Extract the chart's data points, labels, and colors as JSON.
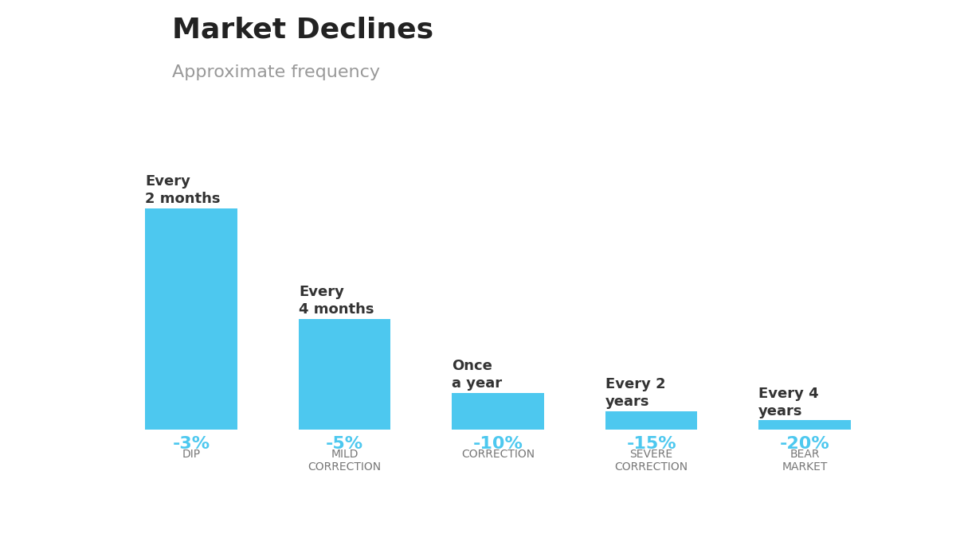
{
  "title": "Market Declines",
  "subtitle": "Approximate frequency",
  "bar_color": "#4DC8EF",
  "background_color": "#FFFFFF",
  "categories": [
    "-3%",
    "-5%",
    "-10%",
    "-15%",
    "-20%"
  ],
  "sublabels": [
    "DIP",
    "MILD\nCORRECTION",
    "CORRECTION",
    "SEVERE\nCORRECTION",
    "BEAR\nMARKET"
  ],
  "values": [
    6.0,
    3.0,
    1.0,
    0.5,
    0.25
  ],
  "above_labels": [
    "Every\n2 months",
    "Every\n4 months",
    "Once\na year",
    "Every 2\nyears",
    "Every 4\nyears"
  ],
  "title_fontsize": 26,
  "subtitle_fontsize": 16,
  "category_fontsize": 16,
  "sublabel_fontsize": 10,
  "above_label_fontsize": 13,
  "title_color": "#222222",
  "subtitle_color": "#999999",
  "category_color": "#4DC8EF",
  "sublabel_color": "#777777",
  "above_label_color": "#333333",
  "bar_width": 0.6,
  "xlim": [
    -0.5,
    4.8
  ],
  "ylim": [
    0,
    8.0
  ]
}
